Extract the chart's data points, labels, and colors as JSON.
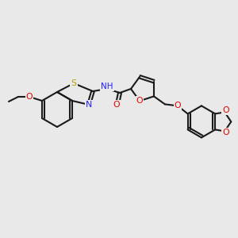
{
  "bg_color": "#e9e9e9",
  "bond_color": "#1a1a1a",
  "bond_width": 1.5,
  "atom_colors": {
    "O": "#e60000",
    "N": "#2020ff",
    "S": "#b8a000",
    "C": "#1a1a1a",
    "H": "#1a1a1a"
  },
  "font_size": 7.5
}
